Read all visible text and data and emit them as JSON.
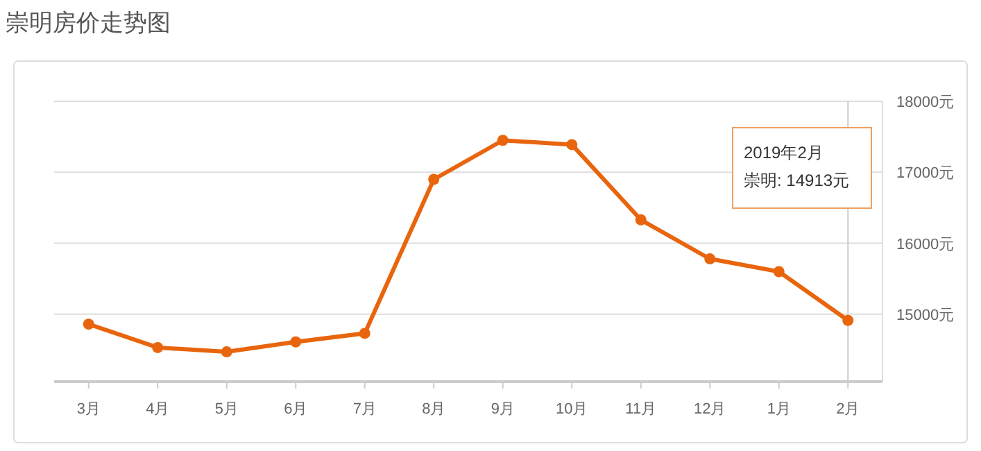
{
  "chart_data": {
    "type": "line",
    "title": "崇明房价走势图",
    "categories": [
      "3月",
      "4月",
      "5月",
      "6月",
      "7月",
      "8月",
      "9月",
      "10月",
      "11月",
      "12月",
      "1月",
      "2月"
    ],
    "series": [
      {
        "color": "#e8650e",
        "values": [
          14860,
          14530,
          14470,
          14610,
          14730,
          16900,
          17450,
          17390,
          16330,
          15780,
          15600,
          14913
        ]
      }
    ],
    "ylim": [
      14050,
      18000
    ],
    "yticks": [
      {
        "value": 15000,
        "label": "15000元"
      },
      {
        "value": 16000,
        "label": "16000元"
      },
      {
        "value": 17000,
        "label": "17000元"
      },
      {
        "value": 18000,
        "label": "18000元"
      }
    ],
    "grid": "y",
    "marker": "circle",
    "line_style": "solid",
    "ref_lines": [
      {
        "axis": "x",
        "value": "2月",
        "color": "#cccccc"
      }
    ],
    "annotations": [
      "2019年2月",
      "崇明: 14913元"
    ]
  }
}
